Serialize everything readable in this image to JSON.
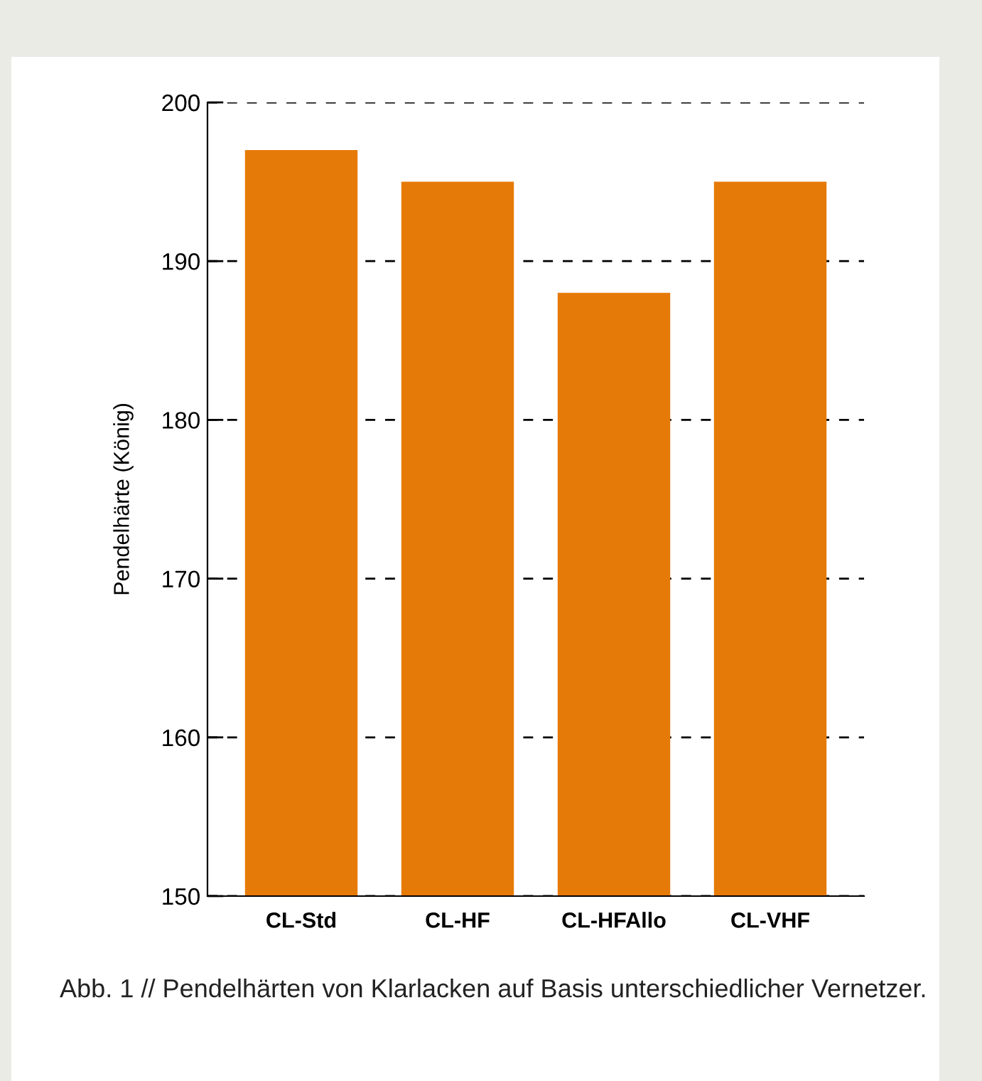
{
  "chart_data": {
    "type": "bar",
    "ylabel": "Pendelhärte (König)",
    "categories": [
      "CL-Std",
      "CL-HF",
      "CL-HFAllo",
      "CL-VHF"
    ],
    "values": [
      197,
      195,
      188,
      195
    ],
    "color": "#e67a08",
    "ylim": [
      150,
      200
    ],
    "yticks": [
      150,
      160,
      170,
      180,
      190,
      200
    ],
    "grid": "y",
    "annotations": [
      "Abb. 1 // Pendelhärten von Klarlacken auf Basis unterschiedlicher Vernetzer."
    ]
  }
}
